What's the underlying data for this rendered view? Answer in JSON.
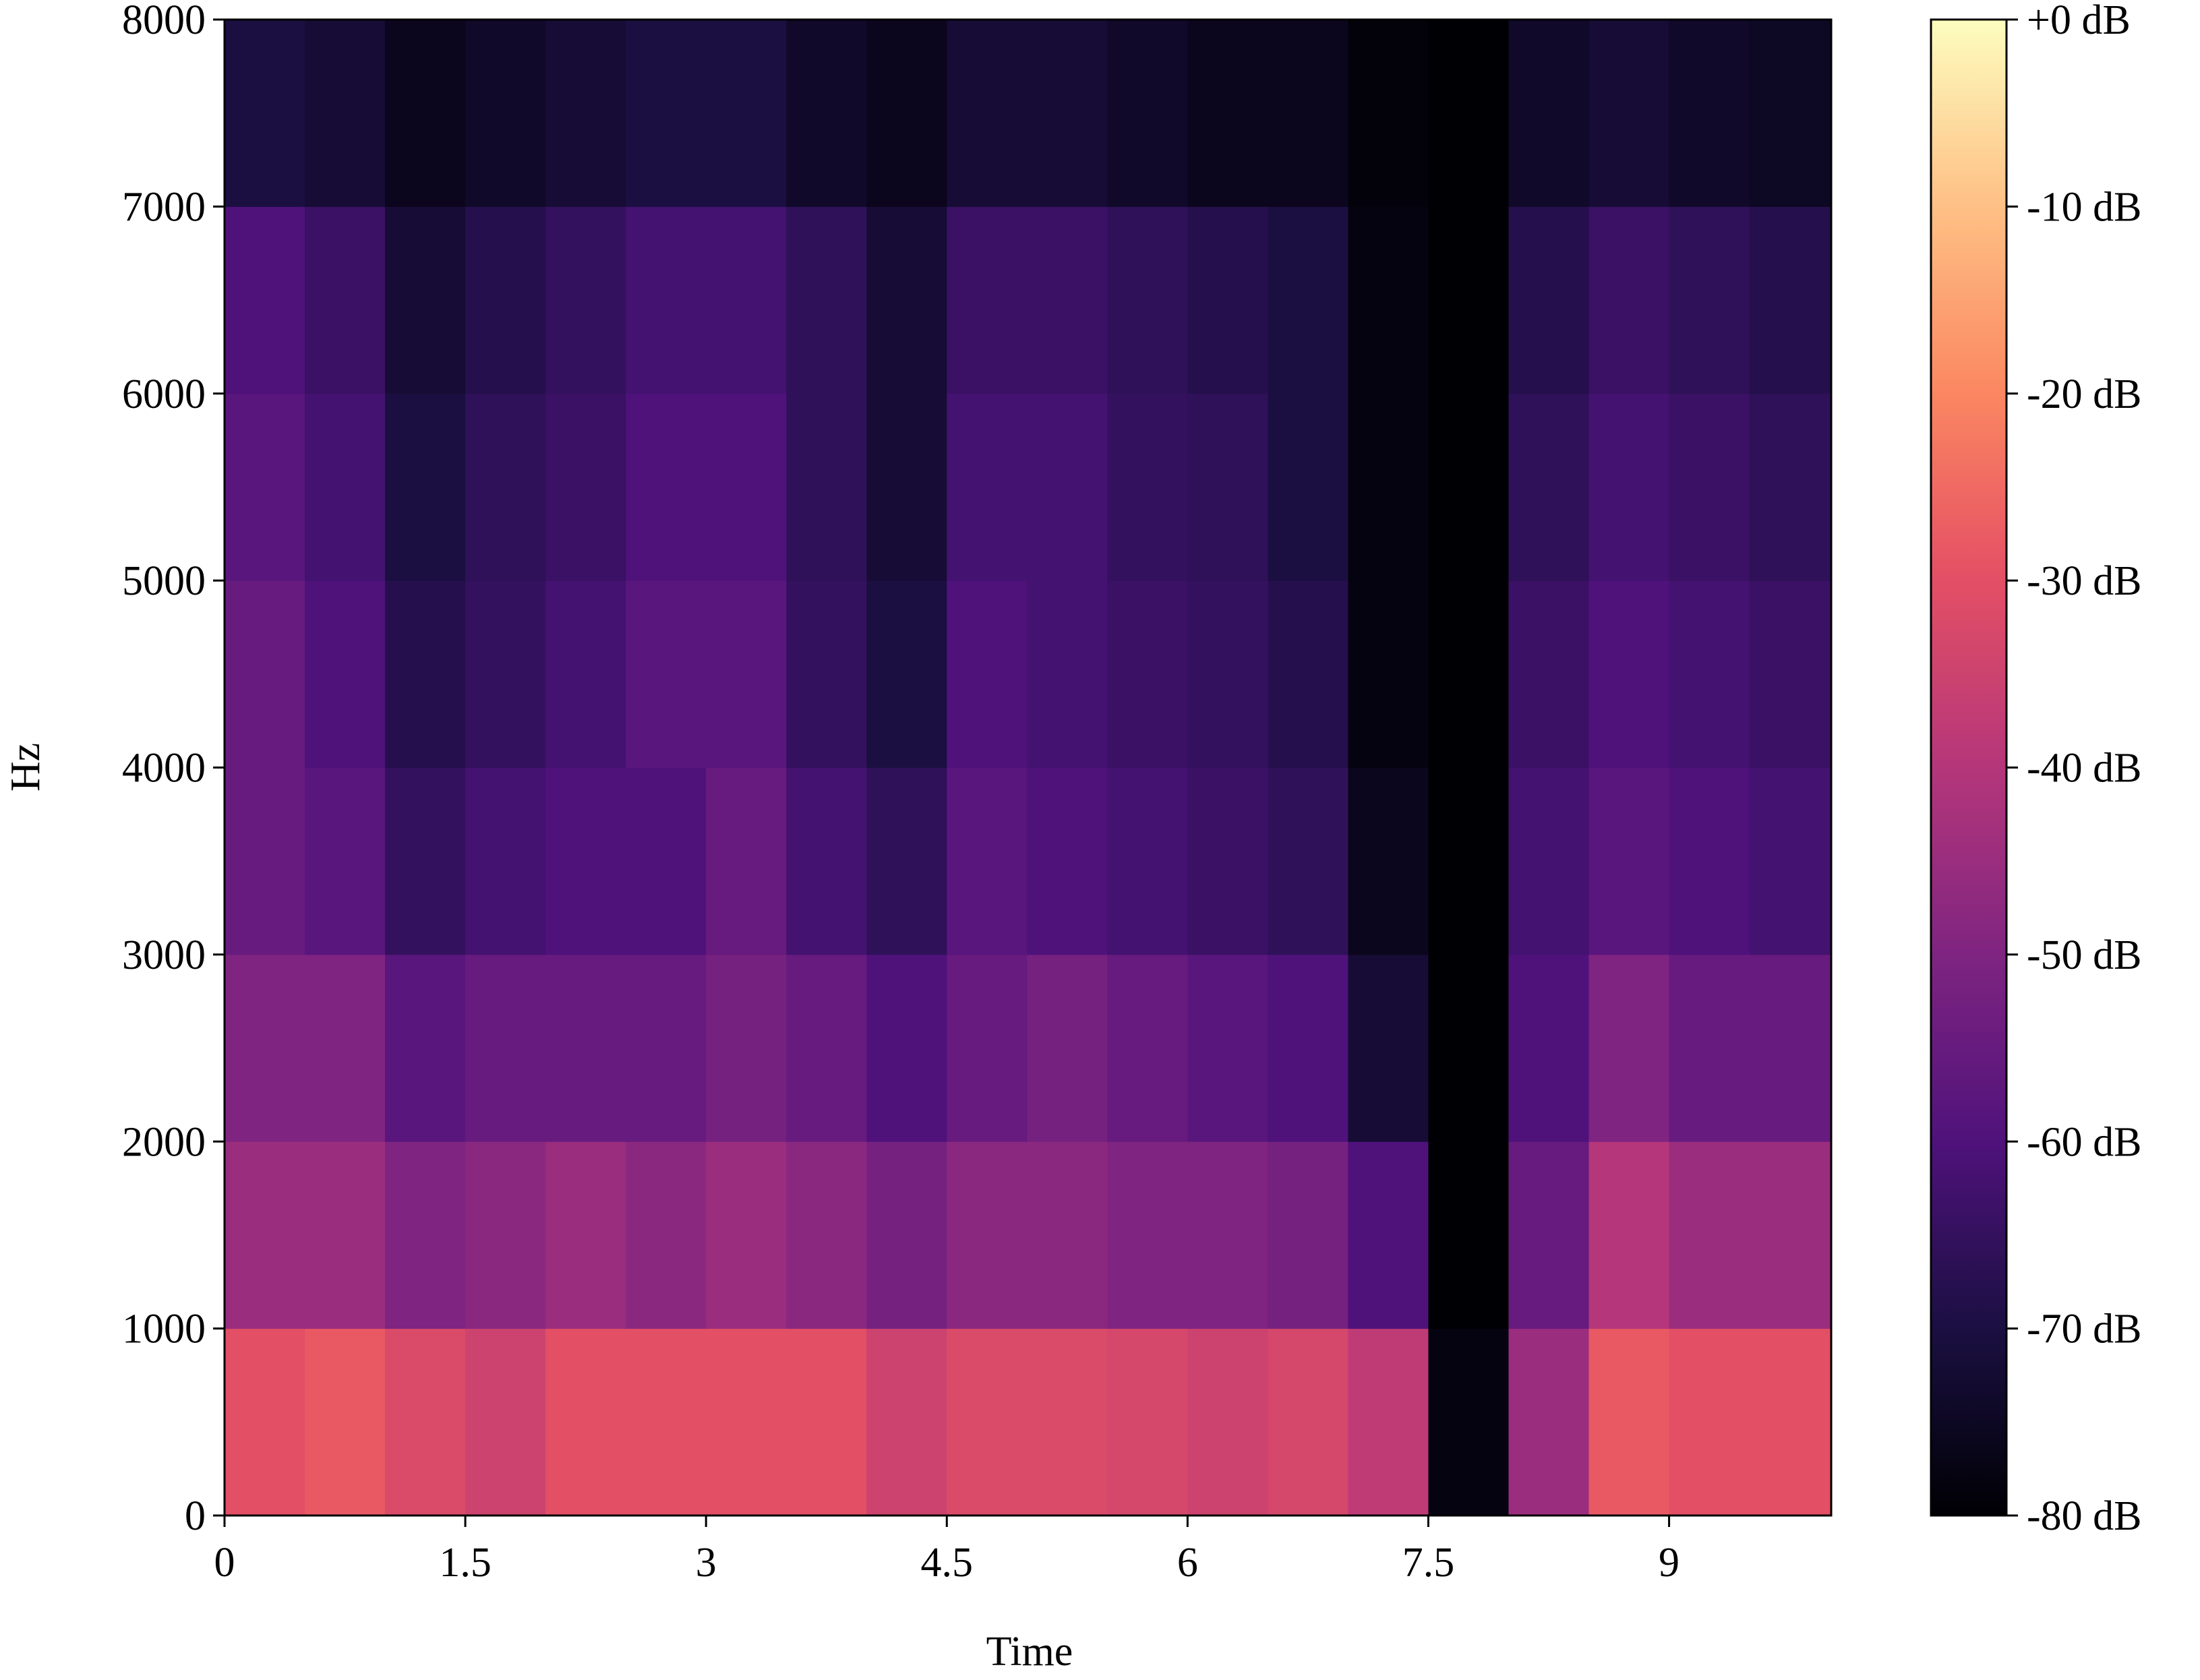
{
  "chart_data": {
    "type": "spectrogram",
    "x_label": "Time",
    "y_label": "Hz",
    "colormap": "magma",
    "xlim": [
      0,
      10.01
    ],
    "ylim": [
      0,
      8000
    ],
    "xticks": [
      0,
      1.5,
      3,
      4.5,
      6,
      7.5,
      9
    ],
    "yticks": [
      0,
      1000,
      2000,
      3000,
      4000,
      5000,
      6000,
      7000,
      8000
    ],
    "time_bins": [
      0,
      0.5,
      1,
      1.5,
      2,
      2.5,
      3,
      3.5,
      4,
      4.5,
      5,
      5.5,
      6,
      6.5,
      7,
      7.5,
      8,
      8.5,
      9,
      9.5,
      10.01
    ],
    "freq_bins": [
      0,
      1000,
      2000,
      3000,
      4000,
      5000,
      6000,
      7000,
      8000
    ],
    "values": [
      [
        -30,
        -28,
        -32,
        -35,
        -30,
        -30,
        -30,
        -30,
        -35,
        -32,
        -32,
        -33,
        -35,
        -33,
        -38,
        -78,
        -45,
        -28,
        -30,
        -30
      ],
      [
        -45,
        -45,
        -50,
        -48,
        -45,
        -48,
        -45,
        -48,
        -52,
        -48,
        -48,
        -50,
        -50,
        -52,
        -60,
        -80,
        -55,
        -40,
        -45,
        -45
      ],
      [
        -50,
        -50,
        -58,
        -55,
        -55,
        -55,
        -52,
        -55,
        -60,
        -55,
        -52,
        -55,
        -58,
        -60,
        -72,
        -80,
        -60,
        -50,
        -55,
        -55
      ],
      [
        -55,
        -58,
        -65,
        -62,
        -60,
        -60,
        -55,
        -62,
        -66,
        -58,
        -60,
        -62,
        -64,
        -66,
        -76,
        -80,
        -62,
        -58,
        -60,
        -62
      ],
      [
        -55,
        -60,
        -68,
        -65,
        -62,
        -58,
        -58,
        -65,
        -70,
        -60,
        -62,
        -64,
        -65,
        -68,
        -78,
        -80,
        -64,
        -60,
        -62,
        -64
      ],
      [
        -58,
        -62,
        -70,
        -66,
        -64,
        -60,
        -60,
        -66,
        -72,
        -62,
        -62,
        -65,
        -66,
        -70,
        -78,
        -80,
        -66,
        -62,
        -64,
        -66
      ],
      [
        -60,
        -64,
        -72,
        -68,
        -65,
        -62,
        -62,
        -66,
        -72,
        -64,
        -64,
        -66,
        -68,
        -70,
        -78,
        -80,
        -68,
        -64,
        -66,
        -68
      ],
      [
        -70,
        -72,
        -76,
        -74,
        -72,
        -70,
        -70,
        -74,
        -76,
        -72,
        -72,
        -74,
        -76,
        -76,
        -79,
        -80,
        -74,
        -72,
        -74,
        -75
      ]
    ],
    "colorbar": {
      "lim": [
        -80,
        0
      ],
      "ticks": [
        {
          "value": 0,
          "label": "+0 dB"
        },
        {
          "value": -10,
          "label": "-10 dB"
        },
        {
          "value": -20,
          "label": "-20 dB"
        },
        {
          "value": -30,
          "label": "-30 dB"
        },
        {
          "value": -40,
          "label": "-40 dB"
        },
        {
          "value": -50,
          "label": "-50 dB"
        },
        {
          "value": -60,
          "label": "-60 dB"
        },
        {
          "value": -70,
          "label": "-70 dB"
        },
        {
          "value": -80,
          "label": "-80 dB"
        }
      ]
    }
  }
}
